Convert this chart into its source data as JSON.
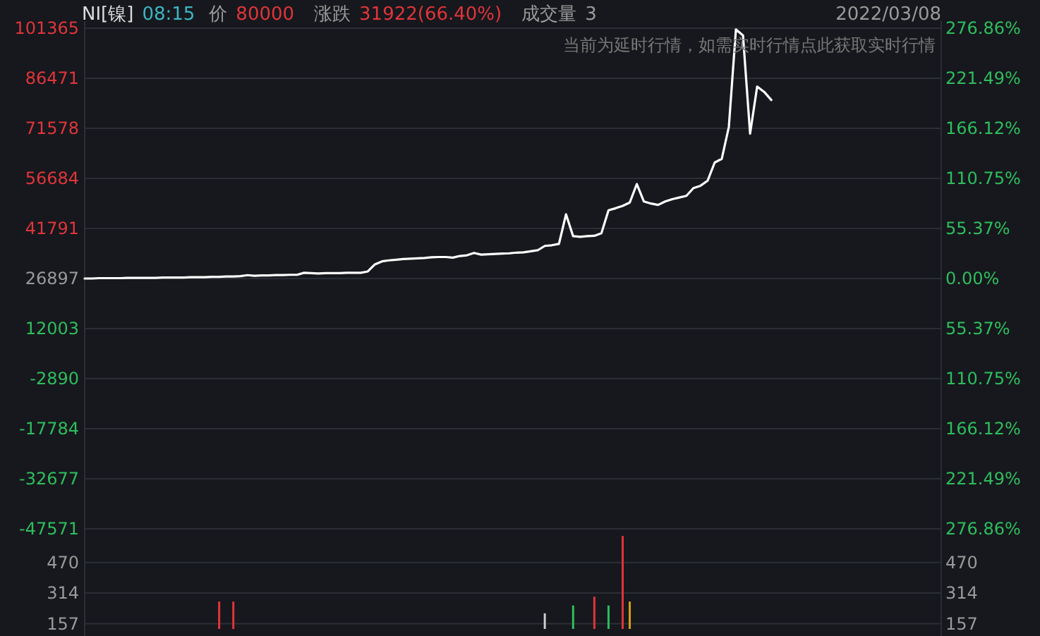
{
  "chart_data": [
    {
      "type": "line",
      "title": "NI[镍]",
      "subtitle": "2022/03/08",
      "annotations": [
        "08:15",
        "价",
        "80000",
        "涨跌",
        "31922(66.40%)",
        "成交量",
        "3",
        "当前为延时行情，如需实时行情点此获取实时行情"
      ],
      "categories": [
        null,
        null,
        null,
        null,
        null,
        null,
        null,
        null,
        null,
        null,
        null,
        null,
        null,
        null,
        null,
        null,
        null,
        null,
        null,
        null,
        null,
        null,
        null,
        null,
        null,
        null,
        null,
        null,
        null,
        null,
        null,
        null,
        null,
        null,
        null,
        null,
        null,
        null,
        null,
        null,
        null,
        null,
        null,
        null,
        null,
        null,
        null,
        null,
        null,
        null,
        null,
        null,
        null,
        null,
        null,
        null,
        null,
        null,
        null,
        null,
        null,
        null,
        null,
        null,
        null,
        null,
        null,
        null,
        null,
        null,
        null,
        null,
        null,
        null,
        null,
        null,
        null,
        null,
        null,
        null,
        null,
        null,
        null,
        null,
        null,
        null,
        null,
        null,
        null,
        null,
        null,
        null,
        null,
        null,
        null,
        null,
        null,
        null,
        null,
        null,
        null,
        null,
        null,
        null,
        null,
        null,
        null,
        null,
        null,
        null,
        null,
        null,
        null,
        null,
        null,
        null,
        null,
        null,
        null,
        null,
        null,
        null
      ],
      "series": [
        {
          "color": "#ffffff",
          "values": [
            26900,
            26900,
            27000,
            27000,
            27000,
            27000,
            27100,
            27100,
            27100,
            27100,
            27100,
            27200,
            27200,
            27200,
            27200,
            27300,
            27300,
            27300,
            27400,
            27400,
            27500,
            27500,
            27600,
            27900,
            27700,
            27800,
            27800,
            27900,
            27900,
            28000,
            28000,
            28600,
            28500,
            28400,
            28500,
            28500,
            28500,
            28600,
            28600,
            28600,
            29000,
            31100,
            32000,
            32300,
            32500,
            32700,
            32800,
            32900,
            33000,
            33200,
            33300,
            33300,
            33100,
            33600,
            33800,
            34500,
            34000,
            34100,
            34200,
            34300,
            34400,
            34600,
            34700,
            35000,
            35300,
            36600,
            36800,
            37200,
            46000,
            39500,
            39300,
            39500,
            39600,
            40400,
            47200,
            47800,
            48500,
            49500,
            55000,
            49800,
            49200,
            48800,
            49800,
            50500,
            51000,
            51500,
            53800,
            54500,
            56000,
            61400,
            62500,
            72000,
            101000,
            99200,
            70000,
            84000,
            82400,
            80000,
            null,
            null,
            null,
            null,
            null,
            null,
            null,
            null,
            null,
            null,
            null,
            null,
            null,
            null,
            null,
            null,
            null,
            null,
            null,
            null,
            null,
            null,
            null,
            null
          ]
        }
      ],
      "ylim": [
        -47571,
        101365
      ],
      "yticks": [
        101365,
        86471,
        71578,
        56684,
        41791,
        26897,
        12003,
        -2890,
        -17784,
        -32677,
        -47571
      ],
      "y2lim": [
        -276.86,
        276.86
      ],
      "y2ticks": [
        {
          "value": 276.86,
          "label": "276.86%"
        },
        {
          "value": 221.49,
          "label": "221.49%"
        },
        {
          "value": 166.12,
          "label": "166.12%"
        },
        {
          "value": 110.75,
          "label": "110.75%"
        },
        {
          "value": 55.37,
          "label": "55.37%"
        },
        {
          "value": 0,
          "label": "0.00%"
        },
        {
          "value": -55.37,
          "label": "55.37%"
        },
        {
          "value": -110.75,
          "label": "110.75%"
        },
        {
          "value": -166.12,
          "label": "166.12%"
        },
        {
          "value": -221.49,
          "label": "221.49%"
        },
        {
          "value": -276.86,
          "label": "276.86%"
        }
      ],
      "grid": "y",
      "tick_labels": "y"
    },
    {
      "type": "bar",
      "categories": [
        null,
        null,
        null,
        null,
        null,
        null,
        null,
        null,
        null,
        null,
        null,
        null,
        null,
        null,
        null,
        null,
        null,
        null,
        null,
        null,
        null,
        null,
        null,
        null,
        null,
        null,
        null,
        null,
        null,
        null,
        null,
        null,
        null,
        null,
        null,
        null,
        null,
        null,
        null,
        null,
        null,
        null,
        null,
        null,
        null,
        null,
        null,
        null,
        null,
        null,
        null,
        null,
        null,
        null,
        null,
        null,
        null,
        null,
        null,
        null,
        null,
        null,
        null,
        null,
        null,
        null,
        null,
        null,
        null,
        null,
        null,
        null,
        null,
        null,
        null,
        null,
        null,
        null,
        null,
        null,
        null,
        null,
        null,
        null,
        null,
        null,
        null,
        null,
        null,
        null,
        null,
        null,
        null,
        null,
        null,
        null,
        null,
        null,
        null,
        null,
        null,
        null,
        null,
        null,
        null,
        null,
        null,
        null,
        null,
        null,
        null,
        null,
        null,
        null,
        null,
        null,
        null,
        null,
        null,
        null,
        null,
        null
      ],
      "series": [
        {
          "color": "#e0353b",
          "values": [
            null,
            null,
            null,
            null,
            null,
            null,
            null,
            null,
            null,
            null,
            null,
            null,
            null,
            null,
            null,
            null,
            null,
            null,
            null,
            270,
            null,
            270,
            null,
            null,
            null,
            null,
            null,
            null,
            null,
            null,
            null,
            null,
            null,
            null,
            null,
            null,
            null,
            null,
            null,
            null,
            null,
            null,
            null,
            null,
            null,
            null,
            null,
            null,
            null,
            null,
            null,
            null,
            null,
            null,
            null,
            null,
            null,
            null,
            null,
            null,
            null,
            null,
            null,
            null,
            null,
            null,
            null,
            null,
            null,
            null,
            null,
            null,
            295,
            null,
            null,
            null,
            605,
            null,
            null,
            null,
            null,
            null,
            null,
            null,
            null,
            null,
            null,
            null,
            null,
            null,
            null,
            null,
            null,
            null,
            null,
            null,
            null,
            null,
            null,
            null,
            null,
            null,
            null,
            null,
            null,
            null,
            null,
            null,
            null,
            null,
            null,
            null,
            null,
            null,
            null,
            null,
            null,
            null,
            null,
            null,
            null,
            null
          ]
        },
        {
          "color": "#2ebd5d",
          "values": [
            null,
            null,
            null,
            null,
            null,
            null,
            null,
            null,
            null,
            null,
            null,
            null,
            null,
            null,
            null,
            null,
            null,
            null,
            null,
            null,
            null,
            null,
            null,
            null,
            null,
            null,
            null,
            null,
            null,
            null,
            null,
            null,
            null,
            null,
            null,
            null,
            null,
            null,
            null,
            null,
            null,
            null,
            null,
            null,
            null,
            null,
            null,
            null,
            null,
            null,
            null,
            null,
            null,
            null,
            null,
            null,
            null,
            null,
            null,
            null,
            null,
            null,
            null,
            null,
            null,
            null,
            null,
            null,
            null,
            250,
            null,
            null,
            null,
            null,
            250,
            null,
            null,
            null,
            null,
            null,
            null,
            null,
            null,
            null,
            null,
            null,
            null,
            null,
            null,
            null,
            null,
            null,
            null,
            null,
            null,
            null,
            null,
            null,
            null,
            null,
            null,
            null,
            null,
            null,
            null,
            null,
            null,
            null,
            null,
            null,
            null,
            null,
            null,
            null,
            null,
            null,
            null,
            null,
            null,
            null,
            null,
            null
          ]
        },
        {
          "color": "#cccccc",
          "values": [
            null,
            null,
            null,
            null,
            null,
            null,
            null,
            null,
            null,
            null,
            null,
            null,
            null,
            null,
            null,
            null,
            null,
            null,
            null,
            null,
            null,
            null,
            null,
            null,
            null,
            null,
            null,
            null,
            null,
            null,
            null,
            null,
            null,
            null,
            null,
            null,
            null,
            null,
            null,
            null,
            null,
            null,
            null,
            null,
            null,
            null,
            null,
            null,
            null,
            null,
            null,
            null,
            null,
            null,
            null,
            null,
            null,
            null,
            null,
            null,
            null,
            null,
            null,
            null,
            null,
            210,
            null,
            null,
            null,
            null,
            null,
            null,
            null,
            null,
            null,
            null,
            null,
            null,
            null,
            null,
            null,
            null,
            null,
            null,
            null,
            null,
            null,
            null,
            null,
            null,
            null,
            null,
            null,
            null,
            null,
            null,
            null,
            null,
            null,
            null,
            null,
            null,
            null,
            null,
            null,
            null,
            null,
            null,
            null,
            null,
            null,
            null,
            null,
            null,
            null,
            null,
            null,
            null,
            null,
            null,
            null,
            null
          ]
        },
        {
          "color": "#d4a017",
          "values": [
            null,
            null,
            null,
            null,
            null,
            null,
            null,
            null,
            null,
            null,
            null,
            null,
            null,
            null,
            null,
            null,
            null,
            null,
            null,
            null,
            null,
            null,
            null,
            null,
            null,
            null,
            null,
            null,
            null,
            null,
            null,
            null,
            null,
            null,
            null,
            null,
            null,
            null,
            null,
            null,
            null,
            null,
            null,
            null,
            null,
            null,
            null,
            null,
            null,
            null,
            null,
            null,
            null,
            null,
            null,
            null,
            null,
            null,
            null,
            null,
            null,
            null,
            null,
            null,
            null,
            null,
            null,
            null,
            null,
            null,
            null,
            null,
            null,
            null,
            null,
            null,
            null,
            270,
            null,
            null,
            null,
            null,
            null,
            null,
            null,
            null,
            null,
            null,
            null,
            null,
            null,
            null,
            null,
            null,
            null,
            null,
            null,
            null,
            null,
            null,
            null,
            null,
            null,
            null,
            null,
            null,
            null,
            null,
            null,
            null,
            null,
            null,
            null,
            null,
            null,
            null,
            null,
            null,
            null,
            null,
            null,
            null
          ]
        }
      ],
      "ylim": [
        130,
        620
      ],
      "yticks": [
        157,
        314,
        470
      ],
      "y2lim": [
        130,
        620
      ],
      "y2ticks": [
        157,
        314,
        470
      ],
      "grid": "y",
      "tick_labels": "y"
    }
  ]
}
